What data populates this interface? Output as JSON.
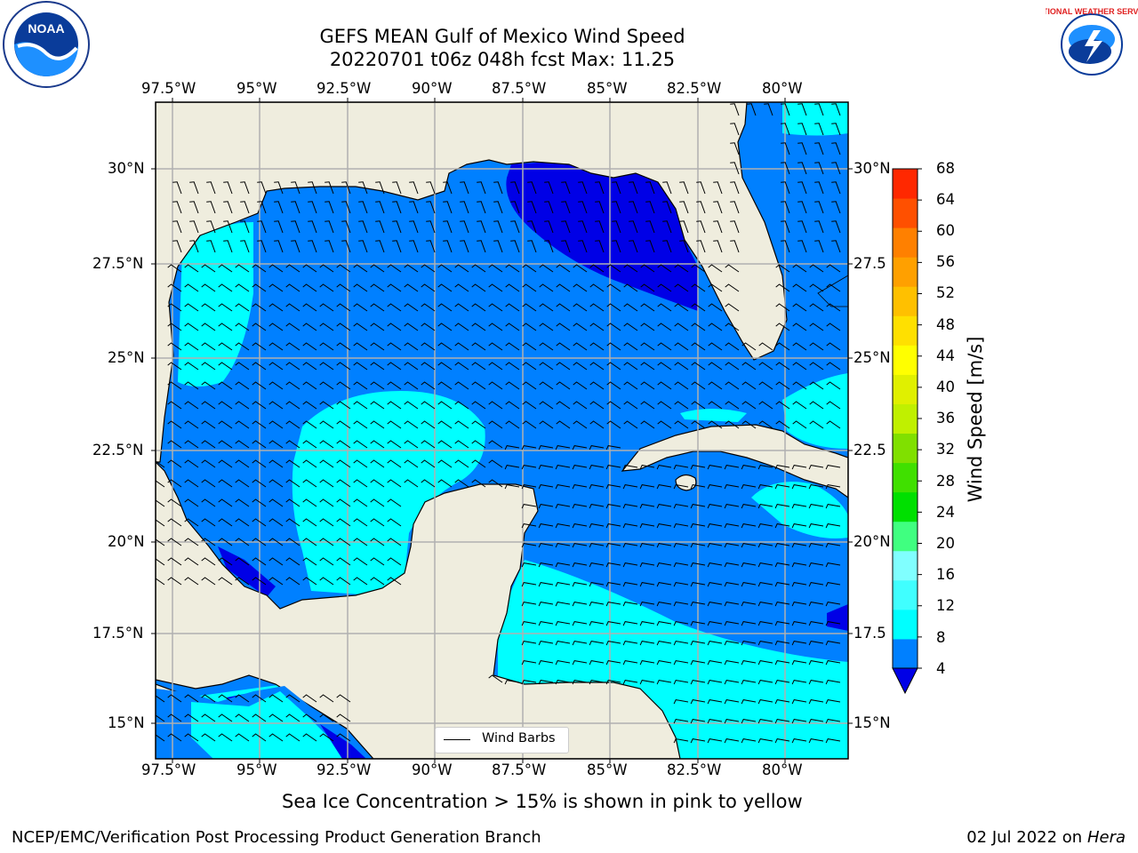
{
  "title": {
    "line1": "GEFS MEAN Gulf of Mexico Wind Speed",
    "line2": "20220701 t06z 048h fcst   Max: 11.25"
  },
  "map": {
    "lon_ticks": [
      "97.5°W",
      "95°W",
      "92.5°W",
      "90°W",
      "87.5°W",
      "85°W",
      "82.5°W",
      "80°W"
    ],
    "lat_ticks": [
      "30°N",
      "27.5°N",
      "25°N",
      "22.5°N",
      "20°N",
      "17.5°N",
      "15°N"
    ],
    "lat_ticks_right": [
      "30°N",
      "27.5",
      "25°N",
      "22.5",
      "20°N",
      "17.5",
      "15°N"
    ],
    "colors": {
      "land": "#efedde",
      "speed_4_8": "#0080ff",
      "speed_8_12": "#00ffff",
      "speed_below_4": "#0000e6",
      "gridline": "#b0b0b0"
    },
    "legend": {
      "label": "Wind Barbs"
    }
  },
  "colorbar": {
    "label": "Wind Speed [m/s]",
    "ticks": [
      "68",
      "64",
      "60",
      "56",
      "52",
      "48",
      "44",
      "40",
      "36",
      "32",
      "28",
      "24",
      "20",
      "16",
      "12",
      "8",
      "4"
    ],
    "colors": [
      "#0080ff",
      "#00ffff",
      "#40ffff",
      "#80ffff",
      "#40ff80",
      "#00e000",
      "#40e000",
      "#80e000",
      "#c0f000",
      "#e0f000",
      "#ffff00",
      "#ffe000",
      "#ffc000",
      "#ffa000",
      "#ff8000",
      "#ff5000",
      "#ff2800",
      "#ff0000"
    ],
    "extend_color": "#0000e6"
  },
  "note": "Sea Ice Concentration > 15% is shown in pink to yellow",
  "footer": {
    "left": "NCEP/EMC/Verification Post Processing Product Generation Branch",
    "date": "02 Jul 2022 on ",
    "host": "Hera"
  },
  "logos": {
    "left": "NOAA",
    "right": "NATIONAL WEATHER SERVICE"
  }
}
